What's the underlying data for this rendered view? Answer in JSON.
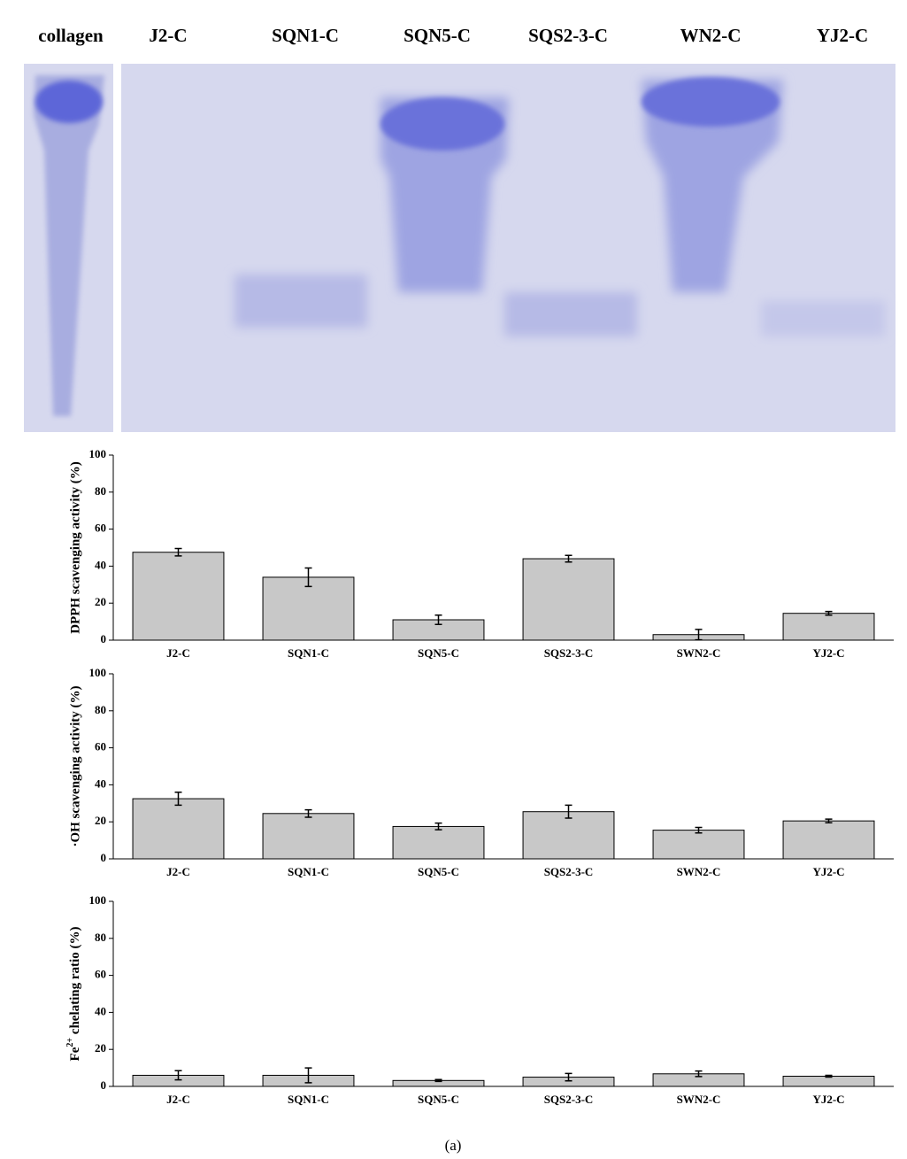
{
  "gel": {
    "lanes": [
      "collagen",
      "J2-C",
      "SQN1-C",
      "SQN5-C",
      "SQS2-3-C",
      "WN2-C",
      "YJ2-C"
    ]
  },
  "chart_data": [
    {
      "type": "bar",
      "y_label": "DPPH scavenging activity (%)",
      "categories": [
        "J2-C",
        "SQN1-C",
        "SQN5-C",
        "SQS2-3-C",
        "SWN2-C",
        "YJ2-C"
      ],
      "values": [
        47.5,
        34,
        11,
        44,
        3,
        14.5
      ],
      "errors": [
        2,
        5,
        2.5,
        1.8,
        2.8,
        1
      ],
      "color": "#c8c8c8",
      "ylim": [
        0,
        100
      ],
      "yticks": [
        0,
        20,
        40,
        60,
        80,
        100
      ]
    },
    {
      "type": "bar",
      "y_label": "·OH scavenging activity (%)",
      "categories": [
        "J2-C",
        "SQN1-C",
        "SQN5-C",
        "SQS2-3-C",
        "SWN2-C",
        "YJ2-C"
      ],
      "values": [
        32.5,
        24.5,
        17.5,
        25.5,
        15.5,
        20.5
      ],
      "errors": [
        3.5,
        2,
        1.8,
        3.5,
        1.5,
        1
      ],
      "color": "#c8c8c8",
      "ylim": [
        0,
        100
      ],
      "yticks": [
        0,
        20,
        40,
        60,
        80,
        100
      ]
    },
    {
      "type": "bar",
      "y_label": [
        "Fe",
        "2+",
        " chelating ratio (%)"
      ],
      "categories": [
        "J2-C",
        "SQN1-C",
        "SQN5-C",
        "SQS2-3-C",
        "SWN2-C",
        "YJ2-C"
      ],
      "values": [
        6,
        6,
        3.2,
        5,
        6.8,
        5.5
      ],
      "errors": [
        2.5,
        4,
        0.5,
        2,
        1.5,
        0.5
      ],
      "color": "#c8c8c8",
      "ylim": [
        0,
        100
      ],
      "yticks": [
        0,
        20,
        40,
        60,
        80,
        100
      ]
    }
  ],
  "caption": "(a)"
}
